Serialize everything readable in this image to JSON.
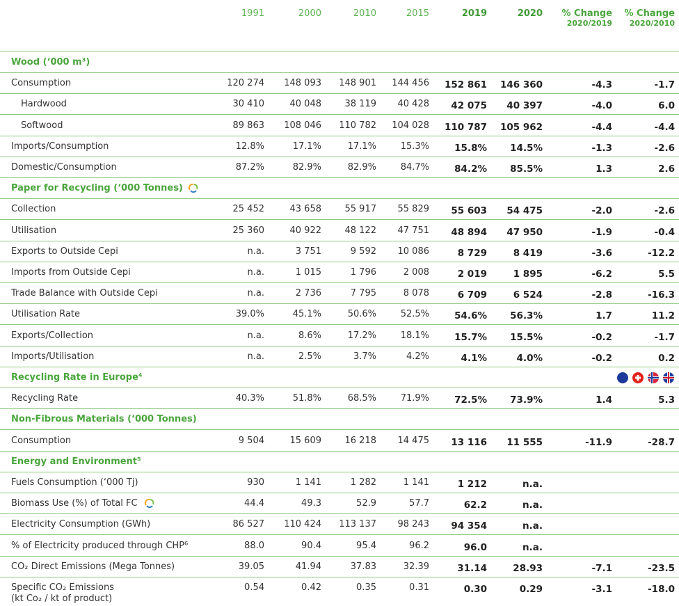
{
  "header": {
    "years": [
      "1991",
      "2000",
      "2010",
      "2015",
      "2019",
      "2020"
    ],
    "changes": [
      {
        "title": "% Change",
        "sub": "2020/2019"
      },
      {
        "title": "% Change",
        "sub": "2020/2010"
      }
    ]
  },
  "sections": [
    {
      "title": "Wood (‘000 m³)",
      "rows": [
        {
          "label": "Consumption",
          "values": [
            "120 274",
            "148 093",
            "148 901",
            "144 456",
            "152 861",
            "146 360",
            "-4.3",
            "-1.7"
          ]
        },
        {
          "label": "Hardwood",
          "indent": true,
          "values": [
            "30 410",
            "40 048",
            "38 119",
            "40 428",
            "42 075",
            "40 397",
            "-4.0",
            "6.0"
          ]
        },
        {
          "label": "Softwood",
          "indent": true,
          "values": [
            "89 863",
            "108 046",
            "110 782",
            "104 028",
            "110 787",
            "105 962",
            "-4.4",
            "-4.4"
          ]
        },
        {
          "label": "Imports/Consumption",
          "values": [
            "12.8%",
            "17.1%",
            "17.1%",
            "15.3%",
            "15.8%",
            "14.5%",
            "-1.3",
            "-2.6"
          ]
        },
        {
          "label": "Domestic/Consumption",
          "values": [
            "87.2%",
            "82.9%",
            "82.9%",
            "84.7%",
            "84.2%",
            "85.5%",
            "1.3",
            "2.6"
          ]
        }
      ]
    },
    {
      "title": "Paper for Recycling (‘000 Tonnes)",
      "icon": "recycle",
      "rows": [
        {
          "label": "Collection",
          "values": [
            "25 452",
            "43 658",
            "55 917",
            "55 829",
            "55 603",
            "54 475",
            "-2.0",
            "-2.6"
          ]
        },
        {
          "label": "Utilisation",
          "values": [
            "25 360",
            "40 922",
            "48 122",
            "47 751",
            "48 894",
            "47 950",
            "-1.9",
            "-0.4"
          ]
        },
        {
          "label": "Exports to Outside Cepi",
          "values": [
            "n.a.",
            "3 751",
            "9 592",
            "10 086",
            "8 729",
            "8 419",
            "-3.6",
            "-12.2"
          ]
        },
        {
          "label": "Imports from Outside Cepi",
          "values": [
            "n.a.",
            "1 015",
            "1 796",
            "2 008",
            "2 019",
            "1 895",
            "-6.2",
            "5.5"
          ]
        },
        {
          "label": "Trade Balance with Outside Cepi",
          "values": [
            "n.a.",
            "2 736",
            "7 795",
            "8 078",
            "6 709",
            "6 524",
            "-2.8",
            "-16.3"
          ]
        },
        {
          "label": "Utilisation Rate",
          "values": [
            "39.0%",
            "45.1%",
            "50.6%",
            "52.5%",
            "54.6%",
            "56.3%",
            "1.7",
            "11.2"
          ]
        },
        {
          "label": "Exports/Collection",
          "values": [
            "n.a.",
            "8.6%",
            "17.2%",
            "18.1%",
            "15.7%",
            "15.5%",
            "-0.2",
            "-1.7"
          ]
        },
        {
          "label": "Imports/Utilisation",
          "values": [
            "n.a.",
            "2.5%",
            "3.7%",
            "4.2%",
            "4.1%",
            "4.0%",
            "-0.2",
            "0.2"
          ]
        }
      ]
    },
    {
      "title": "Recycling Rate in Europe⁴",
      "icon": "flags",
      "rows": [
        {
          "label": "Recycling Rate",
          "values": [
            "40.3%",
            "51.8%",
            "68.5%",
            "71.9%",
            "72.5%",
            "73.9%",
            "1.4",
            "5.3"
          ]
        }
      ]
    },
    {
      "title": "Non-Fibrous Materials (‘000 Tonnes)",
      "rows": [
        {
          "label": "Consumption",
          "values": [
            "9 504",
            "15 609",
            "16 218",
            "14 475",
            "13 116",
            "11 555",
            "-11.9",
            "-28.7"
          ]
        }
      ]
    },
    {
      "title": "Energy and Environment⁵",
      "rows": [
        {
          "label": "Fuels Consumption (‘000 Tj)",
          "values": [
            "930",
            "1 141",
            "1 282",
            "1 141",
            "1 212",
            "n.a.",
            null,
            null
          ]
        },
        {
          "label": "Biomass Use (%) of Total FC",
          "icon": "recycle",
          "values": [
            "44.4",
            "49.3",
            "52.9",
            "57.7",
            "62.2",
            "n.a.",
            null,
            null
          ]
        },
        {
          "label": "Electricity Consumption (GWh)",
          "values": [
            "86 527",
            "110 424",
            "113 137",
            "98 243",
            "94 354",
            "n.a.",
            null,
            null
          ]
        },
        {
          "label": "% of Electricity produced through CHP⁶",
          "values": [
            "88.0",
            "90.4",
            "95.4",
            "96.2",
            "96.0",
            "n.a.",
            null,
            null
          ]
        },
        {
          "label": "CO₂ Direct Emissions (Mega Tonnes)",
          "values": [
            "39.05",
            "41.94",
            "37.83",
            "32.39",
            "31.14",
            "28.93",
            "-7.1",
            "-23.5"
          ]
        },
        {
          "label": "Specific CO₂ Emissions",
          "sublabel": "(kt Co₂ / kt of product)",
          "values": [
            "0.54",
            "0.42",
            "0.35",
            "0.31",
            "0.30",
            "0.29",
            "-3.1",
            "-18.0"
          ]
        }
      ]
    }
  ]
}
